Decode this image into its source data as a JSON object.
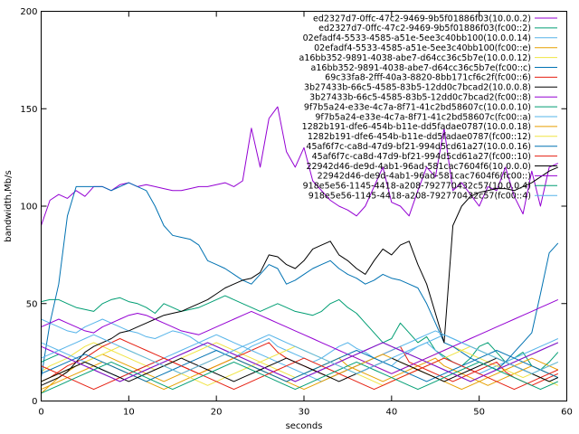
{
  "chart_data": {
    "type": "line",
    "title": "",
    "xlabel": "seconds",
    "ylabel": "bandwidth,Mb/s",
    "xlim": [
      0,
      60
    ],
    "ylim": [
      0,
      200
    ],
    "xticks": [
      0,
      10,
      20,
      30,
      40,
      50,
      60
    ],
    "yticks": [
      0,
      50,
      100,
      150,
      200
    ],
    "grid": false,
    "legend_position": "top-right",
    "series": [
      {
        "name": "ed2327d7-0ffc-47c2-9469-9b5f01886f03(10.0.0.2)",
        "color": "#9400d3",
        "values": [
          90,
          103,
          106,
          104,
          108,
          105,
          110,
          110,
          108,
          111,
          112,
          110,
          111,
          110,
          109,
          108,
          108,
          109,
          110,
          110,
          111,
          112,
          110,
          113,
          140,
          120,
          145,
          151,
          128,
          120,
          130,
          113,
          108,
          103,
          100,
          98,
          95,
          100,
          110,
          120,
          102,
          100,
          95,
          108,
          120,
          115,
          140,
          108,
          112,
          106,
          100,
          110,
          108,
          120,
          105,
          96,
          118,
          100,
          120,
          122
        ]
      },
      {
        "name": "ed2327d7-0ffc-47c2-9469-9b5f01886f03(fc00::2)",
        "color": "#009e73",
        "values": [
          51,
          52,
          52,
          50,
          48,
          47,
          46,
          50,
          52,
          53,
          51,
          50,
          48,
          45,
          50,
          48,
          46,
          47,
          48,
          50,
          52,
          54,
          52,
          50,
          48,
          46,
          48,
          50,
          48,
          46,
          45,
          44,
          46,
          50,
          52,
          48,
          45,
          40,
          35,
          30,
          32,
          40,
          35,
          30,
          33,
          26,
          23,
          20,
          18,
          22,
          28,
          30,
          25,
          20,
          22,
          25,
          18,
          16,
          20,
          25
        ]
      },
      {
        "name": "02efadf4-5533-4585-a51e-5ee3c40bb100(10.0.0.14)",
        "color": "#56b4e9",
        "values": [
          42,
          40,
          38,
          36,
          35,
          38,
          40,
          42,
          40,
          38,
          36,
          35,
          33,
          32,
          34,
          36,
          35,
          33,
          30,
          28,
          26,
          24,
          22,
          25,
          28,
          30,
          32,
          28,
          26,
          24,
          22,
          20,
          22,
          25,
          28,
          30,
          27,
          25,
          22,
          20,
          18,
          22,
          25,
          28,
          30,
          26,
          22,
          20,
          18,
          16,
          14,
          16,
          18,
          20,
          22,
          24,
          26,
          28,
          30,
          32
        ]
      },
      {
        "name": "02efadf4-5533-4585-a51e-5ee3c40bb100(fc00::e)",
        "color": "#e69f00",
        "values": [
          4,
          8,
          12,
          15,
          18,
          20,
          22,
          24,
          22,
          20,
          18,
          16,
          14,
          12,
          10,
          12,
          14,
          16,
          18,
          20,
          22,
          24,
          22,
          20,
          18,
          16,
          14,
          12,
          10,
          12,
          14,
          16,
          18,
          20,
          22,
          18,
          16,
          14,
          12,
          10,
          12,
          14,
          16,
          18,
          20,
          22,
          18,
          16,
          14,
          12,
          10,
          8,
          10,
          12,
          14,
          16,
          18,
          16,
          14,
          12
        ]
      },
      {
        "name": "a16bb352-9891-4038-abe7-d64cc36c5b7e(10.0.0.12)",
        "color": "#f0e442",
        "values": [
          15,
          18,
          20,
          22,
          25,
          28,
          30,
          28,
          26,
          24,
          22,
          20,
          18,
          16,
          18,
          20,
          22,
          24,
          26,
          28,
          30,
          28,
          26,
          24,
          22,
          20,
          18,
          16,
          14,
          12,
          14,
          16,
          18,
          20,
          22,
          24,
          22,
          20,
          18,
          16,
          14,
          16,
          18,
          20,
          22,
          24,
          26,
          28,
          26,
          24,
          22,
          20,
          18,
          16,
          14,
          12,
          14,
          16,
          18,
          20
        ]
      },
      {
        "name": "a16bb352-9891-4038-abe7-d64cc36c5b7e(fc00::c)",
        "color": "#0072b2",
        "values": [
          12,
          40,
          60,
          95,
          110,
          110,
          110,
          110,
          108,
          110,
          112,
          110,
          108,
          100,
          90,
          85,
          84,
          83,
          80,
          72,
          70,
          68,
          65,
          62,
          60,
          65,
          70,
          68,
          60,
          62,
          65,
          68,
          70,
          72,
          68,
          65,
          63,
          60,
          62,
          65,
          63,
          62,
          60,
          58,
          50,
          40,
          30,
          28,
          25,
          22,
          20,
          18,
          16,
          20,
          25,
          30,
          35,
          55,
          76,
          81
        ]
      },
      {
        "name": "69c33fa8-2fff-40a3-8820-8bb171cf6c2f(fc00::6)",
        "color": "#e51e10",
        "values": [
          10,
          12,
          15,
          18,
          20,
          22,
          25,
          28,
          30,
          32,
          30,
          28,
          26,
          24,
          22,
          20,
          18,
          16,
          14,
          16,
          18,
          20,
          22,
          24,
          26,
          28,
          30,
          25,
          22,
          20,
          18,
          16,
          14,
          12,
          14,
          16,
          18,
          20,
          22,
          24,
          26,
          28,
          20,
          18,
          16,
          14,
          12,
          10,
          12,
          14,
          16,
          18,
          20,
          15,
          12,
          10,
          8,
          10,
          12,
          14
        ]
      },
      {
        "name": "3b27433b-66c5-4585-83b5-12dd0c7bcad2(10.0.0.8)",
        "color": "#000000",
        "values": [
          8,
          10,
          12,
          15,
          20,
          25,
          28,
          30,
          32,
          35,
          36,
          38,
          40,
          42,
          44,
          45,
          46,
          48,
          50,
          52,
          55,
          58,
          60,
          62,
          63,
          66,
          75,
          74,
          70,
          68,
          72,
          78,
          80,
          82,
          75,
          72,
          68,
          65,
          72,
          78,
          75,
          80,
          82,
          70,
          60,
          45,
          30,
          90,
          100,
          105,
          107,
          108,
          109,
          109,
          108,
          110,
          112,
          115,
          118,
          120
        ]
      },
      {
        "name": "3b27433b-66c5-4585-83b5-12dd0c7bcad2(fc00::8)",
        "color": "#9400d3",
        "values": [
          38,
          40,
          42,
          40,
          38,
          36,
          35,
          38,
          40,
          42,
          44,
          45,
          44,
          42,
          40,
          38,
          36,
          35,
          34,
          36,
          38,
          40,
          42,
          44,
          46,
          44,
          42,
          40,
          38,
          36,
          34,
          32,
          30,
          28,
          26,
          24,
          22,
          20,
          18,
          16,
          14,
          16,
          18,
          20,
          22,
          24,
          26,
          28,
          30,
          32,
          34,
          36,
          38,
          40,
          42,
          44,
          46,
          48,
          50,
          52
        ]
      },
      {
        "name": "9f7b5a24-e33e-4c7a-8f71-41c2bd58607c(10.0.0.10)",
        "color": "#009e73",
        "values": [
          20,
          22,
          24,
          22,
          20,
          18,
          16,
          14,
          12,
          10,
          12,
          14,
          16,
          18,
          20,
          22,
          24,
          26,
          28,
          30,
          28,
          26,
          24,
          22,
          20,
          18,
          16,
          14,
          12,
          10,
          12,
          14,
          16,
          18,
          20,
          22,
          24,
          26,
          28,
          30,
          28,
          26,
          24,
          22,
          20,
          18,
          16,
          14,
          12,
          10,
          12,
          14,
          16,
          18,
          20,
          22,
          24,
          26,
          28,
          30
        ]
      },
      {
        "name": "9f7b5a24-e33e-4c7a-8f71-41c2bd58607c(fc00::a)",
        "color": "#56b4e9",
        "values": [
          30,
          28,
          26,
          24,
          22,
          20,
          18,
          16,
          14,
          12,
          14,
          16,
          18,
          20,
          22,
          24,
          26,
          28,
          30,
          32,
          34,
          32,
          30,
          28,
          26,
          24,
          22,
          20,
          18,
          16,
          14,
          12,
          10,
          12,
          14,
          16,
          18,
          20,
          22,
          24,
          26,
          28,
          30,
          32,
          34,
          36,
          34,
          32,
          30,
          28,
          26,
          24,
          22,
          20,
          18,
          16,
          14,
          12,
          10,
          12
        ]
      },
      {
        "name": "1282b191-dfe6-454b-b11e-dd5fadae0787(10.0.0.18)",
        "color": "#e69f00",
        "values": [
          6,
          8,
          10,
          12,
          14,
          16,
          18,
          20,
          18,
          16,
          14,
          12,
          10,
          8,
          6,
          8,
          10,
          12,
          14,
          16,
          18,
          20,
          22,
          20,
          18,
          16,
          14,
          12,
          10,
          8,
          6,
          8,
          10,
          12,
          14,
          16,
          18,
          20,
          22,
          24,
          22,
          20,
          18,
          16,
          14,
          12,
          10,
          8,
          6,
          8,
          10,
          12,
          14,
          16,
          18,
          20,
          22,
          20,
          18,
          16
        ]
      },
      {
        "name": "1282b191-dfe6-454b-b11e-dd5fadae0787(fc00::12)",
        "color": "#f0e442",
        "values": [
          10,
          12,
          14,
          16,
          18,
          20,
          22,
          24,
          26,
          28,
          26,
          24,
          22,
          20,
          18,
          16,
          14,
          12,
          10,
          8,
          10,
          12,
          14,
          16,
          18,
          20,
          22,
          24,
          26,
          28,
          26,
          24,
          22,
          20,
          18,
          16,
          14,
          12,
          10,
          8,
          10,
          12,
          14,
          16,
          18,
          20,
          22,
          24,
          26,
          28,
          26,
          24,
          22,
          20,
          18,
          16,
          14,
          12,
          10,
          8
        ]
      },
      {
        "name": "45af6f7c-ca8d-47d9-bf21-994d5cd61a27(10.0.0.16)",
        "color": "#0072b2",
        "values": [
          14,
          16,
          18,
          20,
          22,
          24,
          22,
          20,
          18,
          16,
          14,
          12,
          10,
          12,
          14,
          16,
          18,
          20,
          22,
          24,
          26,
          24,
          22,
          20,
          18,
          16,
          14,
          12,
          10,
          12,
          14,
          16,
          18,
          20,
          22,
          24,
          26,
          24,
          22,
          20,
          18,
          16,
          14,
          12,
          10,
          12,
          14,
          16,
          18,
          20,
          22,
          24,
          26,
          24,
          22,
          20,
          18,
          16,
          14,
          12
        ]
      },
      {
        "name": "45af6f7c-ca8d-47d9-bf21-994d5cd61a27(fc00::10)",
        "color": "#e51e10",
        "values": [
          18,
          16,
          14,
          12,
          10,
          8,
          6,
          8,
          10,
          12,
          14,
          16,
          18,
          20,
          22,
          20,
          18,
          16,
          14,
          12,
          10,
          8,
          6,
          8,
          10,
          12,
          14,
          16,
          18,
          20,
          22,
          20,
          18,
          16,
          14,
          12,
          10,
          8,
          6,
          8,
          10,
          12,
          14,
          16,
          18,
          20,
          22,
          20,
          18,
          16,
          14,
          12,
          10,
          8,
          6,
          8,
          10,
          12,
          14,
          16
        ]
      },
      {
        "name": "22942d46-de9d-4ab1-96ad-581cac7604f6(10.0.0.0)",
        "color": "#000000",
        "values": [
          10,
          12,
          14,
          16,
          18,
          20,
          18,
          16,
          14,
          12,
          10,
          12,
          14,
          16,
          18,
          20,
          22,
          20,
          18,
          16,
          14,
          12,
          10,
          12,
          14,
          16,
          18,
          20,
          22,
          20,
          18,
          16,
          14,
          12,
          10,
          12,
          14,
          16,
          18,
          20,
          22,
          20,
          18,
          16,
          14,
          12,
          10,
          12,
          14,
          16,
          18,
          20,
          22,
          20,
          18,
          16,
          14,
          12,
          10,
          12
        ]
      },
      {
        "name": "22942d46-de9d-4ab1-96ad-581cac7604f6(fc00::)",
        "color": "#9400d3",
        "values": [
          28,
          26,
          24,
          22,
          20,
          18,
          16,
          14,
          12,
          10,
          12,
          14,
          16,
          18,
          20,
          22,
          24,
          26,
          28,
          30,
          28,
          26,
          24,
          22,
          20,
          18,
          16,
          14,
          12,
          10,
          12,
          14,
          16,
          18,
          20,
          22,
          24,
          26,
          28,
          30,
          28,
          26,
          24,
          22,
          20,
          18,
          16,
          14,
          12,
          10,
          12,
          14,
          16,
          18,
          20,
          22,
          24,
          26,
          28,
          30
        ]
      },
      {
        "name": "918e5e56-1145-4418-a208-792770432c57(10.0.0.4)",
        "color": "#009e73",
        "values": [
          4,
          6,
          8,
          10,
          12,
          14,
          16,
          18,
          20,
          18,
          16,
          14,
          12,
          10,
          8,
          6,
          8,
          10,
          12,
          14,
          16,
          18,
          20,
          18,
          16,
          14,
          12,
          10,
          8,
          6,
          8,
          10,
          12,
          14,
          16,
          18,
          20,
          18,
          16,
          14,
          12,
          10,
          8,
          6,
          8,
          10,
          12,
          14,
          16,
          18,
          20,
          18,
          16,
          14,
          12,
          10,
          8,
          6,
          8,
          10
        ]
      },
      {
        "name": "918e5e56-1145-4418-a208-792770432c57(fc00::4)",
        "color": "#56b4e9",
        "values": [
          22,
          24,
          26,
          28,
          30,
          32,
          34,
          32,
          30,
          28,
          26,
          24,
          22,
          20,
          18,
          16,
          14,
          16,
          18,
          20,
          22,
          24,
          26,
          28,
          30,
          32,
          34,
          32,
          30,
          28,
          26,
          24,
          22,
          20,
          18,
          16,
          14,
          16,
          18,
          20,
          22,
          24,
          26,
          28,
          30,
          32,
          34,
          32,
          30,
          28,
          26,
          24,
          22,
          20,
          18,
          16,
          14,
          16,
          18,
          20
        ]
      }
    ]
  }
}
